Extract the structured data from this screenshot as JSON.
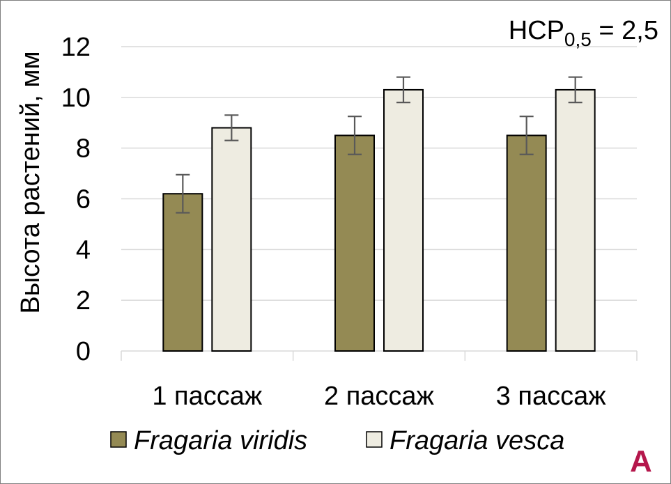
{
  "chart_data": {
    "type": "bar",
    "categories": [
      "1 пассаж",
      "2 пассаж",
      "3 пассаж"
    ],
    "series": [
      {
        "name": "Fragaria viridis",
        "values": [
          6.2,
          8.5,
          8.5
        ],
        "errors": [
          0.75,
          0.75,
          0.75
        ],
        "color": "#948a54"
      },
      {
        "name": "Fragaria vesca",
        "values": [
          8.8,
          10.3,
          10.3
        ],
        "errors": [
          0.5,
          0.5,
          0.5
        ],
        "color": "#eeece1"
      }
    ],
    "ylabel": "Высота растений, мм",
    "yticks": [
      "0",
      "2",
      "4",
      "6",
      "8",
      "10",
      "12"
    ],
    "ylim": [
      0,
      12
    ],
    "grid": true,
    "legend_position": "bottom",
    "annotation": {
      "prefix": "НСР",
      "subscript": "0,5",
      "suffix": " = 2,5"
    },
    "panel_label": "А",
    "panel_label_color": "#b5174c",
    "bar_outline_color": "#000000",
    "error_bar_color": "#595959",
    "grid_color": "#d9d9d9"
  }
}
